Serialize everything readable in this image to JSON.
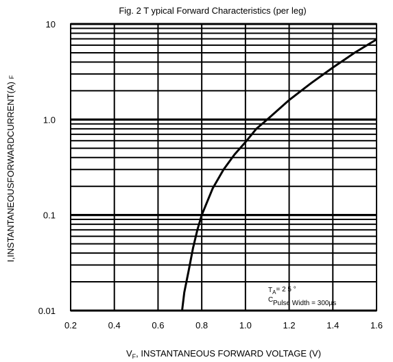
{
  "chart_data": {
    "type": "line",
    "title": "Fig. 2 T ypical Forward Characteristics (per leg)",
    "xlabel_main": "V",
    "xlabel_sub": "F",
    "xlabel_rest": ", INSTANTANEOUS FORWARD VOLTAGE (V)",
    "ylabel_main": "I,INSTANTANEOUSFORWARDCURRENT(A)",
    "ylabel_sub": "F",
    "xlim": [
      0.2,
      1.6
    ],
    "ylim": [
      0.01,
      10
    ],
    "yscale": "log",
    "grid": true,
    "x_ticks": [
      "0.2",
      "0.4",
      "0.6",
      "0.8",
      "1.0",
      "1.2",
      "1.4",
      "1.6"
    ],
    "y_ticks": [
      "0.01",
      "0.1",
      "1.0",
      "10"
    ],
    "annotation": {
      "t_main": "T",
      "t_sub": "A",
      "t_value": "= 2 5 °",
      "t_c": "C",
      "pulse": "Pulse Width = 300µs"
    },
    "series": [
      {
        "x": [
          0.71,
          0.72,
          0.74,
          0.76,
          0.78,
          0.8,
          0.85,
          0.9,
          0.95,
          1.0,
          1.05,
          1.1,
          1.2,
          1.3,
          1.4,
          1.5,
          1.6
        ],
        "y": [
          0.01,
          0.0155,
          0.026,
          0.045,
          0.07,
          0.1,
          0.19,
          0.3,
          0.43,
          0.58,
          0.8,
          1.0,
          1.6,
          2.4,
          3.5,
          5.0,
          6.9
        ]
      }
    ]
  }
}
